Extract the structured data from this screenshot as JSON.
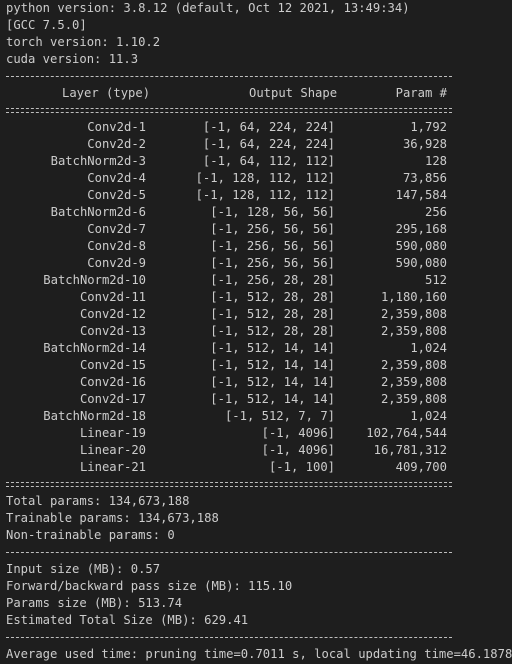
{
  "header_lines": [
    "python version: 3.8.12 (default, Oct 12 2021, 13:49:34)",
    "[GCC 7.5.0]",
    "torch version: 1.10.2",
    "cuda version: 11.3"
  ],
  "table": {
    "columns": [
      "Layer (type)",
      "Output Shape",
      "Param #"
    ],
    "rows": [
      {
        "layer": "Conv2d-1",
        "shape": "[-1, 64, 224, 224]",
        "params": "1,792"
      },
      {
        "layer": "Conv2d-2",
        "shape": "[-1, 64, 224, 224]",
        "params": "36,928"
      },
      {
        "layer": "BatchNorm2d-3",
        "shape": "[-1, 64, 112, 112]",
        "params": "128"
      },
      {
        "layer": "Conv2d-4",
        "shape": "[-1, 128, 112, 112]",
        "params": "73,856"
      },
      {
        "layer": "Conv2d-5",
        "shape": "[-1, 128, 112, 112]",
        "params": "147,584"
      },
      {
        "layer": "BatchNorm2d-6",
        "shape": "[-1, 128, 56, 56]",
        "params": "256"
      },
      {
        "layer": "Conv2d-7",
        "shape": "[-1, 256, 56, 56]",
        "params": "295,168"
      },
      {
        "layer": "Conv2d-8",
        "shape": "[-1, 256, 56, 56]",
        "params": "590,080"
      },
      {
        "layer": "Conv2d-9",
        "shape": "[-1, 256, 56, 56]",
        "params": "590,080"
      },
      {
        "layer": "BatchNorm2d-10",
        "shape": "[-1, 256, 28, 28]",
        "params": "512"
      },
      {
        "layer": "Conv2d-11",
        "shape": "[-1, 512, 28, 28]",
        "params": "1,180,160"
      },
      {
        "layer": "Conv2d-12",
        "shape": "[-1, 512, 28, 28]",
        "params": "2,359,808"
      },
      {
        "layer": "Conv2d-13",
        "shape": "[-1, 512, 28, 28]",
        "params": "2,359,808"
      },
      {
        "layer": "BatchNorm2d-14",
        "shape": "[-1, 512, 14, 14]",
        "params": "1,024"
      },
      {
        "layer": "Conv2d-15",
        "shape": "[-1, 512, 14, 14]",
        "params": "2,359,808"
      },
      {
        "layer": "Conv2d-16",
        "shape": "[-1, 512, 14, 14]",
        "params": "2,359,808"
      },
      {
        "layer": "Conv2d-17",
        "shape": "[-1, 512, 14, 14]",
        "params": "2,359,808"
      },
      {
        "layer": "BatchNorm2d-18",
        "shape": "[-1, 512, 7, 7]",
        "params": "1,024"
      },
      {
        "layer": "Linear-19",
        "shape": "[-1, 4096]",
        "params": "102,764,544"
      },
      {
        "layer": "Linear-20",
        "shape": "[-1, 4096]",
        "params": "16,781,312"
      },
      {
        "layer": "Linear-21",
        "shape": "[-1, 100]",
        "params": "409,700"
      }
    ]
  },
  "params_summary": [
    "Total params: 134,673,188",
    "Trainable params: 134,673,188",
    "Non-trainable params: 0"
  ],
  "size_summary": [
    "Input size (MB): 0.57",
    "Forward/backward pass size (MB): 115.10",
    "Params size (MB): 513.74",
    "Estimated Total Size (MB): 629.41"
  ],
  "footer_line": "Average used time: pruning time=0.7011 s, local updating time=46.1878"
}
